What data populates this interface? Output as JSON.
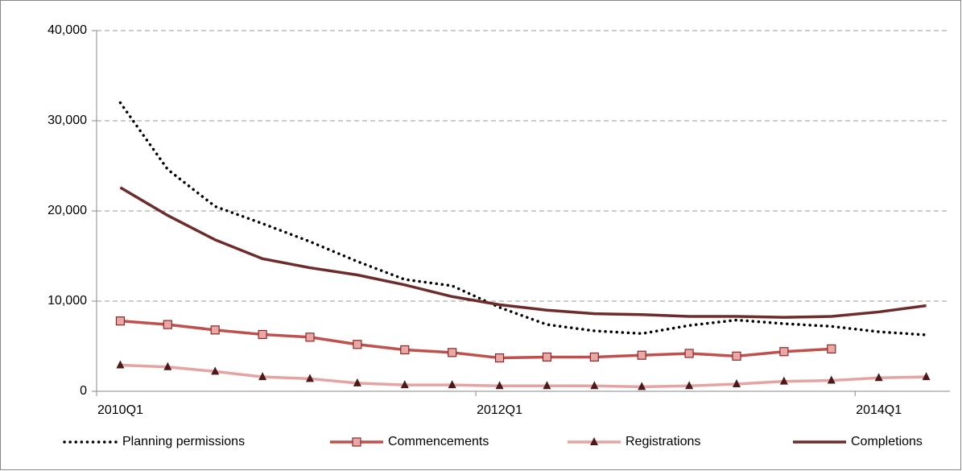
{
  "chart_data": {
    "type": "line",
    "categories": [
      "2010Q1",
      null,
      null,
      null,
      null,
      null,
      null,
      null,
      "2012Q1",
      null,
      null,
      null,
      null,
      null,
      null,
      null,
      "2014Q1",
      null
    ],
    "series": [
      {
        "name": "Planning permissions",
        "color": "#000000",
        "style": "dotted",
        "marker": "none",
        "values": [
          32000,
          24600,
          20500,
          18600,
          16600,
          14400,
          12400,
          11700,
          9300,
          7400,
          6700,
          6400,
          7300,
          7900,
          7500,
          7200,
          6600,
          6250
        ]
      },
      {
        "name": "Commencements",
        "color": "#c0504d",
        "style": "solid",
        "marker": "square",
        "values": [
          7800,
          7400,
          6800,
          6300,
          6000,
          5200,
          4600,
          4300,
          3700,
          3800,
          3800,
          4000,
          4200,
          3900,
          4400,
          4700,
          null,
          null
        ]
      },
      {
        "name": "Registrations",
        "color": "#e6a3a3",
        "style": "solid",
        "marker": "triangle",
        "values": [
          2900,
          2700,
          2200,
          1600,
          1400,
          900,
          700,
          700,
          600,
          600,
          600,
          500,
          600,
          800,
          1100,
          1200,
          1500,
          1600
        ]
      },
      {
        "name": "Completions",
        "color": "#6e2b2b",
        "style": "solid",
        "marker": "none",
        "values": [
          22600,
          19500,
          16800,
          14700,
          13700,
          12900,
          11800,
          10500,
          9600,
          9000,
          8600,
          8500,
          8300,
          8300,
          8200,
          8300,
          8800,
          9500
        ]
      }
    ],
    "ylim": [
      0,
      40000
    ],
    "yticks": [
      0,
      {
        "value": 10000,
        "label": "10,000"
      },
      {
        "value": 20000,
        "label": "20,000"
      },
      {
        "value": 30000,
        "label": "30,000"
      },
      {
        "value": 40000,
        "label": "40,000"
      }
    ],
    "grid": true,
    "legend": "bottom"
  }
}
